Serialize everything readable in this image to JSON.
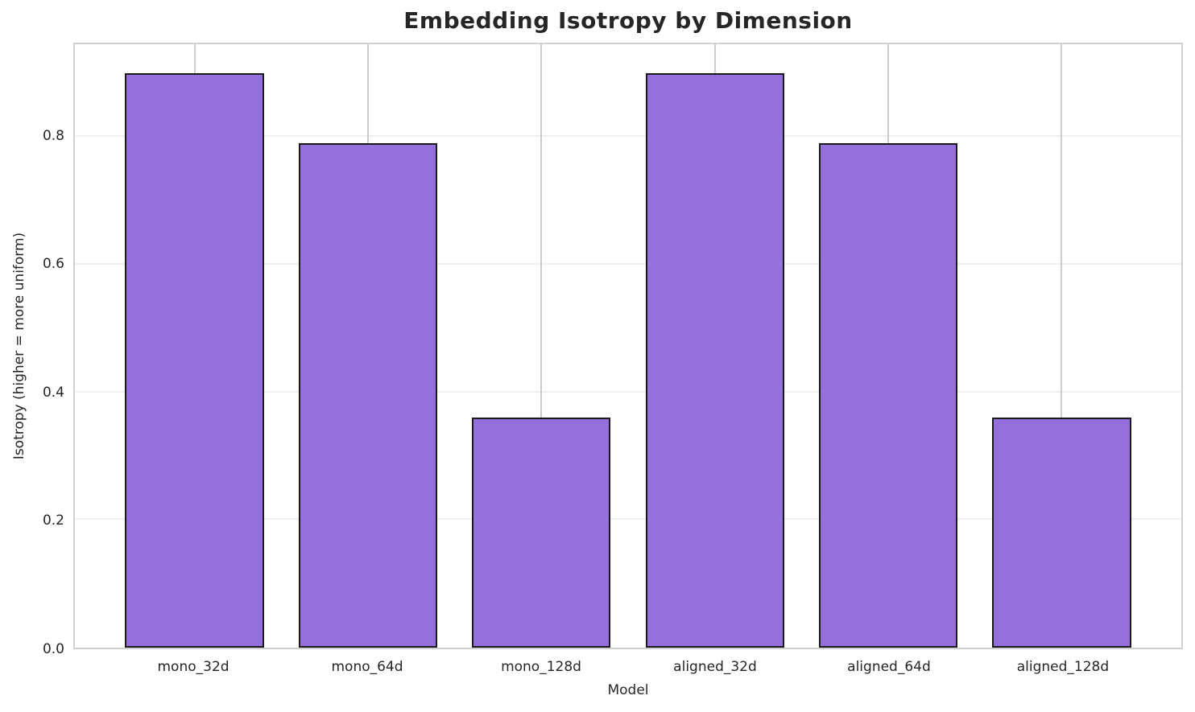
{
  "figure": {
    "title": "Embedding Isotropy by Dimension",
    "xlabel": "Model",
    "ylabel": "Isotropy (higher = more uniform)"
  },
  "chart_data": {
    "type": "bar",
    "title": "Embedding Isotropy by Dimension",
    "xlabel": "Model",
    "ylabel": "Isotropy (higher = more uniform)",
    "categories": [
      "mono_32d",
      "mono_64d",
      "mono_128d",
      "aligned_32d",
      "aligned_64d",
      "aligned_128d"
    ],
    "values": [
      0.9,
      0.79,
      0.36,
      0.9,
      0.79,
      0.36
    ],
    "ylim": [
      0,
      0.945
    ],
    "yticks": [
      0.0,
      0.2,
      0.4,
      0.6,
      0.8
    ],
    "ytick_labels": [
      "0.0",
      "0.2",
      "0.4",
      "0.6",
      "0.8"
    ],
    "grid": true,
    "legend": false,
    "bar_color": "#9370db",
    "bar_edge_color": "#1a1a1a",
    "vgrid_color": "#cccccc",
    "hgrid_color": "#efefef",
    "spine_color": "#d0d0d0",
    "text_color": "#262626"
  }
}
